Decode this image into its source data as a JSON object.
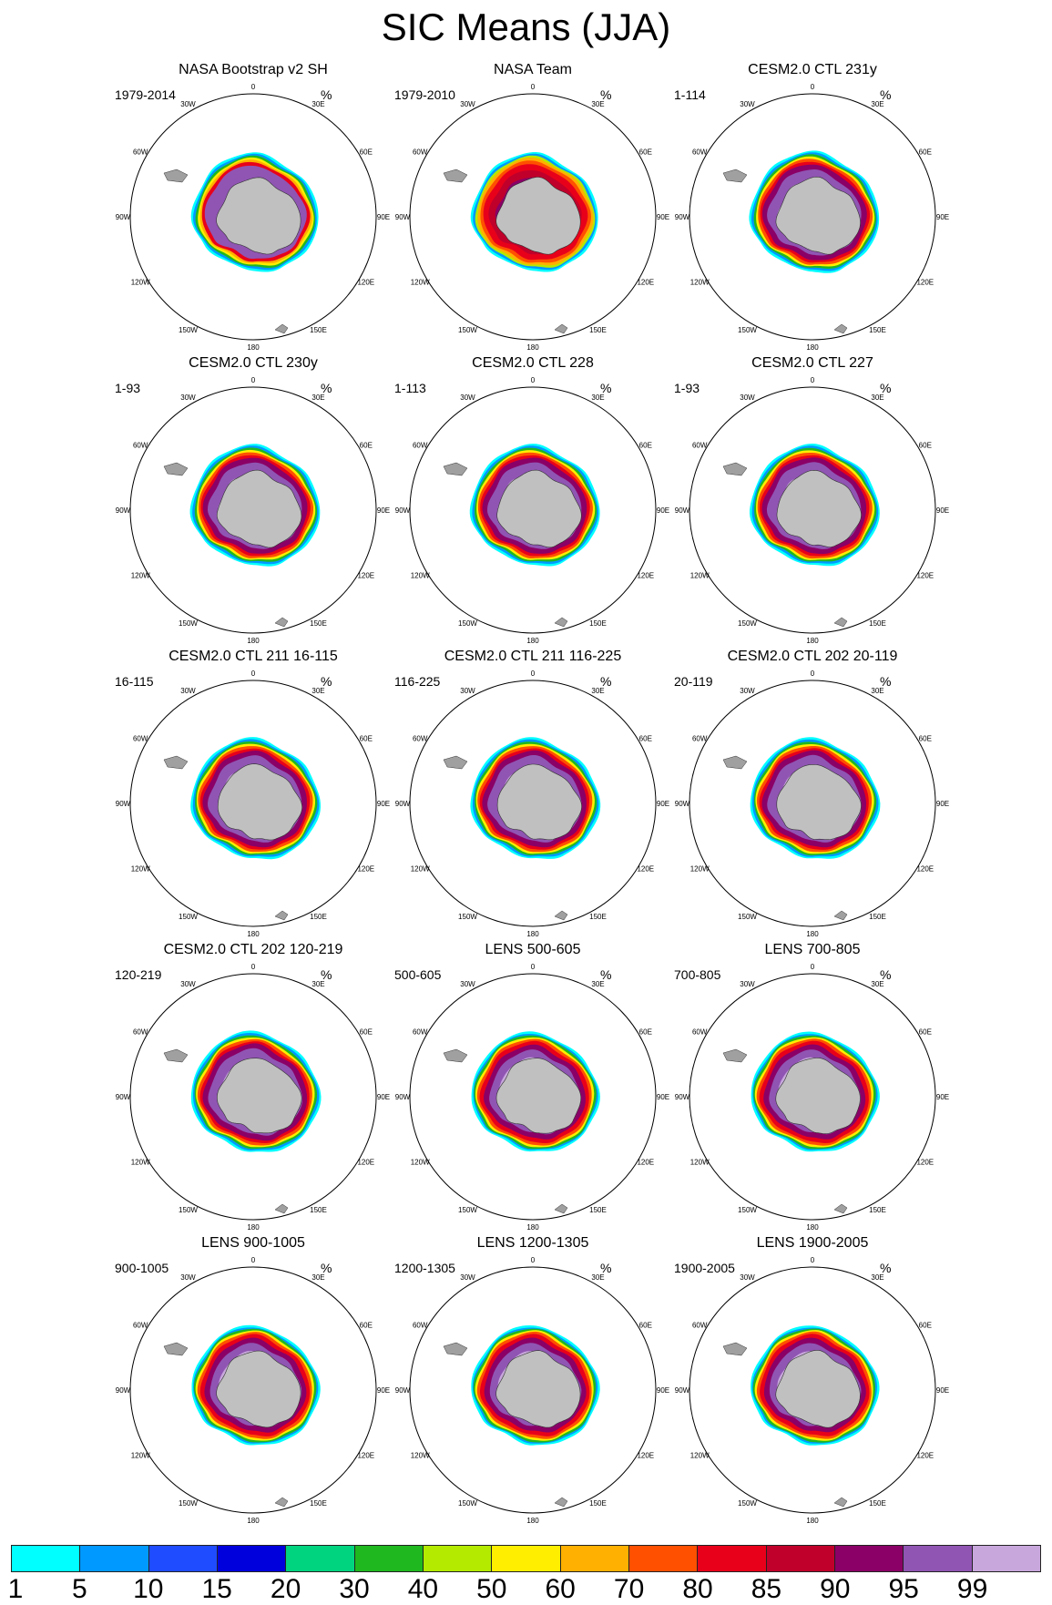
{
  "title": "SIC Means (JJA)",
  "units": "%",
  "lon_labels": [
    "0",
    "30E",
    "60E",
    "90E",
    "120E",
    "150E",
    "180",
    "150W",
    "120W",
    "90W",
    "60W",
    "30W"
  ],
  "panels": [
    {
      "title": "NASA Bootstrap v2 SH",
      "years": "1979-2014",
      "variant": "obs1"
    },
    {
      "title": "NASA Team",
      "years": "1979-2010",
      "variant": "obs2"
    },
    {
      "title": "CESM2.0 CTL 231y",
      "years": "1-114",
      "variant": "model"
    },
    {
      "title": "CESM2.0 CTL 230y",
      "years": "1-93",
      "variant": "model"
    },
    {
      "title": "CESM2.0 CTL 228",
      "years": "1-113",
      "variant": "model"
    },
    {
      "title": "CESM2.0 CTL 227",
      "years": "1-93",
      "variant": "model"
    },
    {
      "title": "CESM2.0 CTL 211 16-115",
      "years": "16-115",
      "variant": "model"
    },
    {
      "title": "CESM2.0 CTL 211 116-225",
      "years": "116-225",
      "variant": "model"
    },
    {
      "title": "CESM2.0 CTL 202 20-119",
      "years": "20-119",
      "variant": "model"
    },
    {
      "title": "CESM2.0 CTL 202 120-219",
      "years": "120-219",
      "variant": "model"
    },
    {
      "title": "LENS 500-605",
      "years": "500-605",
      "variant": "lens"
    },
    {
      "title": "LENS 700-805",
      "years": "700-805",
      "variant": "lens"
    },
    {
      "title": "LENS 900-1005",
      "years": "900-1005",
      "variant": "lens"
    },
    {
      "title": "LENS 1200-1305",
      "years": "1200-1305",
      "variant": "lens"
    },
    {
      "title": "LENS 1900-2005",
      "years": "1900-2005",
      "variant": "lens"
    }
  ],
  "colorbar": {
    "labels": [
      "1",
      "5",
      "10",
      "15",
      "20",
      "30",
      "40",
      "50",
      "60",
      "70",
      "80",
      "85",
      "90",
      "95",
      "99"
    ],
    "colors": [
      "#00ffff",
      "#0099ff",
      "#1f4cff",
      "#0000dd",
      "#00d47f",
      "#1fb81f",
      "#b3ea00",
      "#ffee00",
      "#ffb000",
      "#ff5000",
      "#e8001a",
      "#c0002a",
      "#8a0066",
      "#9055b3",
      "#c8a8dc"
    ]
  },
  "colors": {
    "land": "#c0c0c0",
    "outline": "#000000"
  }
}
